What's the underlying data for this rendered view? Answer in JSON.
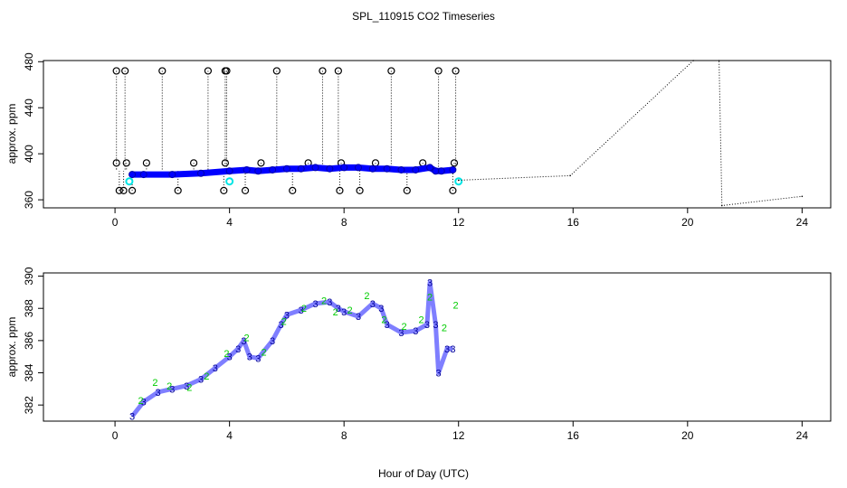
{
  "title": "SPL_110915  CO2 Timeseries",
  "xlabel": "Hour of Day (UTC)",
  "colors": {
    "black": "#000000",
    "blue": "#0000ff",
    "cyan": "#00e5e5",
    "green": "#00cc00",
    "dark_blue": "#000099"
  },
  "chart_data": [
    {
      "type": "scatter",
      "title": "SPL_110915  CO2 Timeseries",
      "ylabel": "approx. ppm",
      "xlim": [
        -2.5,
        25
      ],
      "ylim": [
        353,
        481
      ],
      "xticks": [
        0,
        4,
        8,
        12,
        16,
        20,
        24
      ],
      "yticks": [
        360,
        400,
        440,
        480
      ],
      "series": [
        {
          "name": "outlier_markers",
          "color": "#000000",
          "x": [
            0.05,
            0.05,
            0.15,
            0.3,
            0.35,
            0.4,
            0.6,
            1.1,
            1.65,
            2.2,
            2.75,
            3.25,
            3.8,
            3.85,
            3.85,
            3.9,
            4.55,
            5.1,
            5.65,
            6.2,
            6.75,
            7.25,
            7.8,
            7.85,
            7.9,
            8.55,
            9.1,
            9.65,
            10.2,
            10.75,
            11.3,
            11.8,
            11.85,
            11.9
          ],
          "y": [
            472,
            392,
            368,
            368,
            472,
            392,
            368,
            392,
            472,
            368,
            392,
            472,
            368,
            472,
            392,
            472,
            368,
            392,
            472,
            368,
            392,
            472,
            472,
            368,
            392,
            368,
            392,
            472,
            368,
            392,
            472,
            368,
            392,
            472
          ]
        },
        {
          "name": "co2_main",
          "color": "#0000ff",
          "x": [
            0.6,
            1.0,
            2.0,
            3.0,
            4.0,
            4.6,
            5.0,
            5.5,
            6.0,
            6.5,
            7.0,
            7.5,
            8.0,
            8.5,
            9.0,
            9.5,
            10.0,
            10.5,
            11.0,
            11.2,
            11.4,
            11.8
          ],
          "y": [
            382,
            382,
            382,
            383,
            385,
            386,
            385,
            386,
            387,
            387,
            388,
            387,
            388,
            388,
            387,
            387,
            386,
            386,
            388,
            385,
            385,
            386
          ]
        },
        {
          "name": "cyan_markers",
          "color": "#00e5e5",
          "x": [
            0.5,
            4.0,
            12.0
          ],
          "y": [
            376,
            376,
            376
          ]
        },
        {
          "name": "interpolated",
          "color": "#000000",
          "x": [
            12.0,
            15.9,
            20.2,
            21.1,
            21.2,
            24.0
          ],
          "y": [
            377,
            381,
            481,
            481,
            355,
            363
          ]
        }
      ]
    },
    {
      "type": "scatter",
      "ylabel": "approx. ppm",
      "xlim": [
        -2.5,
        25
      ],
      "ylim": [
        381,
        390.2
      ],
      "xticks": [
        0,
        4,
        8,
        12,
        16,
        20,
        24
      ],
      "yticks": [
        382,
        384,
        386,
        388,
        390
      ],
      "series": [
        {
          "name": "co2_ch3",
          "color": "#000099",
          "marker": "3",
          "x": [
            0.6,
            1.0,
            1.5,
            2.0,
            2.5,
            3.0,
            3.5,
            4.0,
            4.3,
            4.5,
            4.7,
            5.0,
            5.5,
            5.8,
            6.0,
            6.5,
            7.0,
            7.5,
            7.8,
            8.0,
            8.5,
            9.0,
            9.3,
            9.5,
            10.0,
            10.5,
            10.9,
            11.0,
            11.2,
            11.3,
            11.6,
            11.8
          ],
          "y": [
            381.3,
            382.2,
            382.8,
            383.0,
            383.2,
            383.6,
            384.3,
            385.0,
            385.5,
            386.0,
            385.0,
            384.9,
            386.0,
            387.0,
            387.6,
            387.9,
            388.3,
            388.4,
            388.0,
            387.8,
            387.5,
            388.3,
            388.0,
            387.0,
            386.5,
            386.6,
            387.0,
            389.6,
            387.0,
            384.0,
            385.5,
            385.5
          ]
        },
        {
          "name": "co2_ch2",
          "color": "#00cc00",
          "marker": "2",
          "x": [
            0.9,
            1.4,
            1.9,
            2.6,
            3.2,
            3.9,
            4.6,
            5.2,
            5.9,
            6.6,
            7.3,
            7.7,
            8.2,
            8.8,
            9.4,
            10.1,
            10.7,
            11.0,
            11.5,
            11.9
          ],
          "y": [
            382.3,
            383.4,
            383.2,
            383.1,
            383.8,
            385.2,
            386.2,
            385.3,
            387.2,
            388.0,
            388.5,
            387.8,
            387.9,
            388.8,
            387.3,
            386.9,
            387.3,
            388.7,
            386.8,
            388.2
          ]
        }
      ]
    }
  ]
}
